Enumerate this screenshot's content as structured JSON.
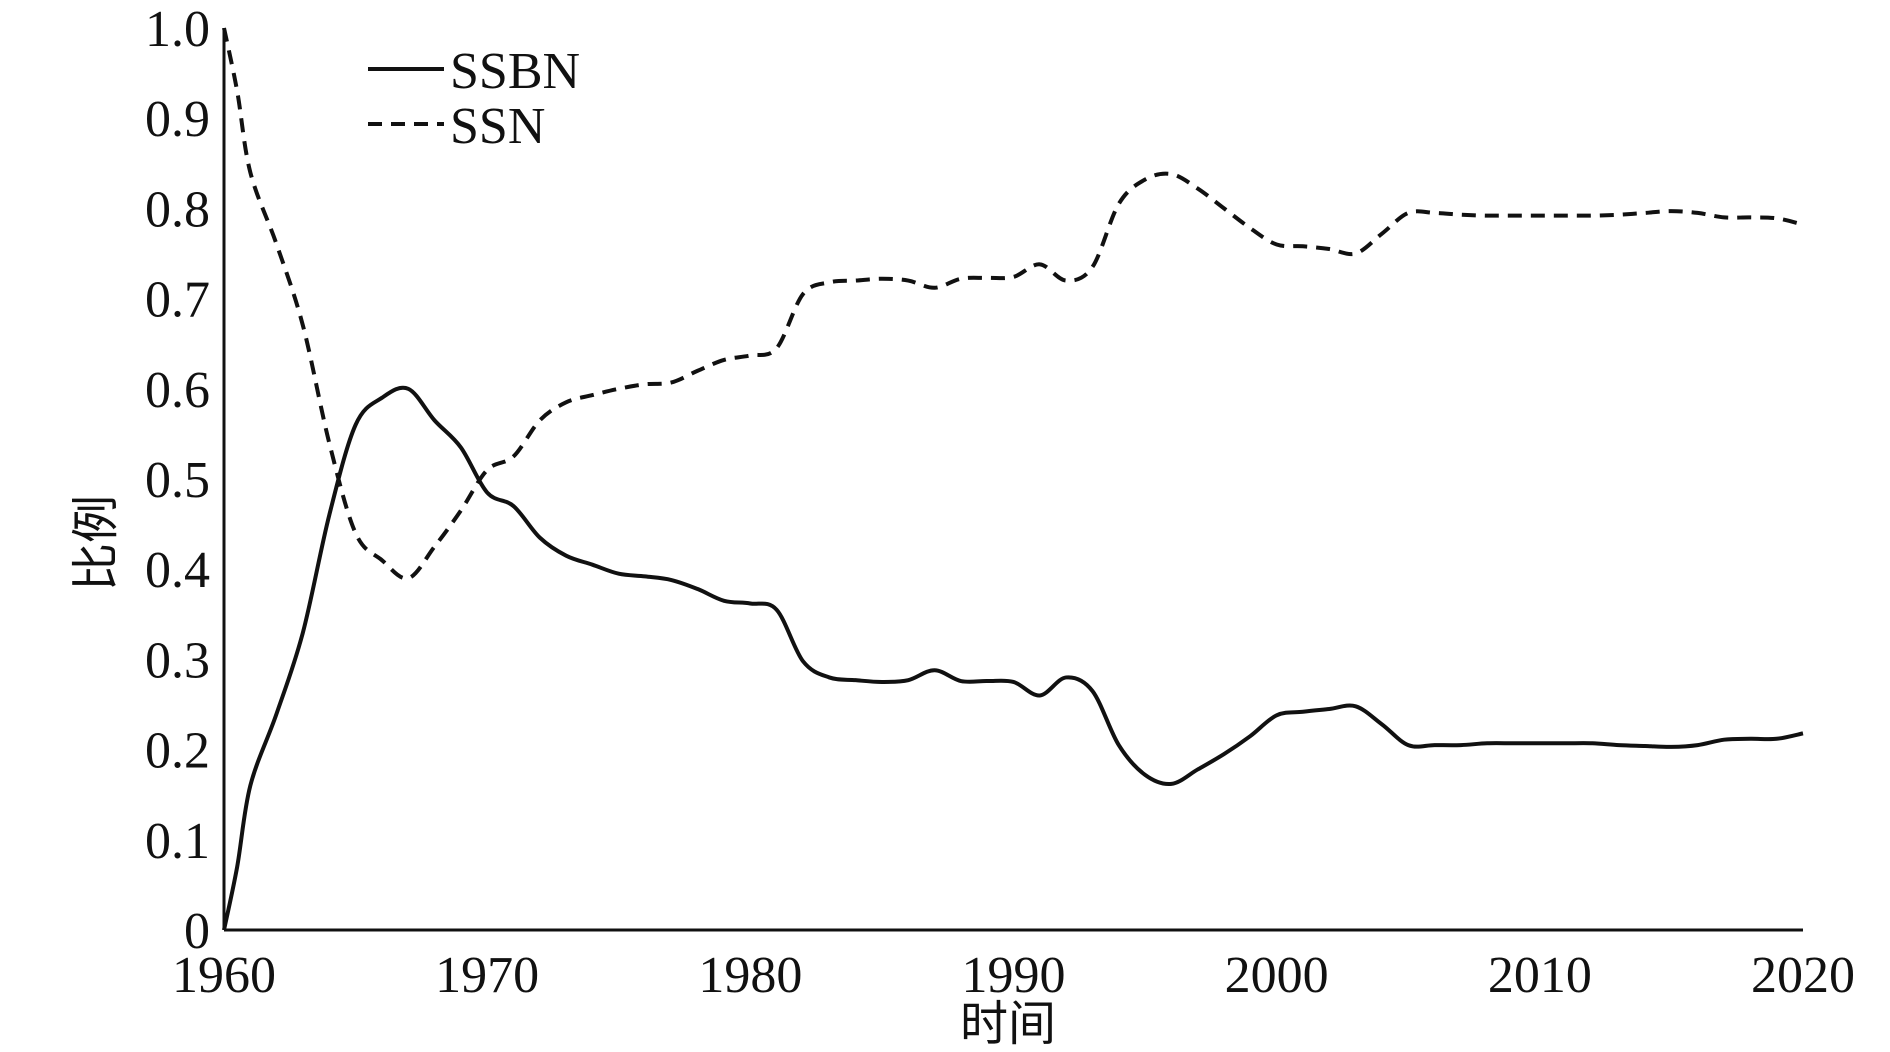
{
  "chart_data": {
    "type": "line",
    "title": "",
    "xlabel": "时间",
    "ylabel": "比例",
    "xlim": [
      1960,
      2020
    ],
    "ylim": [
      0,
      1.0
    ],
    "x_ticks": [
      "1960",
      "1970",
      "1980",
      "1990",
      "2000",
      "2010",
      "2020"
    ],
    "y_ticks": [
      "0",
      "0.1",
      "0.2",
      "0.3",
      "0.4",
      "0.5",
      "0.6",
      "0.7",
      "0.8",
      "0.9",
      "1.0"
    ],
    "grid": false,
    "legend_position": "top-left",
    "series": [
      {
        "name": "SSBN",
        "style": "solid",
        "color": "#111111",
        "x": [
          1960,
          1960.5,
          1961,
          1962,
          1963,
          1964,
          1965,
          1966,
          1967,
          1968,
          1969,
          1970,
          1971,
          1972,
          1973,
          1974,
          1975,
          1976,
          1977,
          1978,
          1979,
          1980,
          1981,
          1982,
          1983,
          1984,
          1985,
          1986,
          1987,
          1988,
          1989,
          1990,
          1991,
          1992,
          1993,
          1994,
          1995,
          1996,
          1997,
          1998,
          1999,
          2000,
          2001,
          2002,
          2003,
          2004,
          2005,
          2006,
          2007,
          2008,
          2009,
          2010,
          2011,
          2012,
          2013,
          2014,
          2015,
          2016,
          2017,
          2018,
          2019,
          2020
        ],
        "y": [
          0.0,
          0.07,
          0.16,
          0.24,
          0.33,
          0.46,
          0.56,
          0.59,
          0.6,
          0.565,
          0.535,
          0.485,
          0.47,
          0.435,
          0.415,
          0.405,
          0.395,
          0.392,
          0.388,
          0.378,
          0.365,
          0.362,
          0.355,
          0.298,
          0.28,
          0.277,
          0.275,
          0.277,
          0.288,
          0.276,
          0.276,
          0.275,
          0.26,
          0.28,
          0.265,
          0.205,
          0.172,
          0.162,
          0.178,
          0.195,
          0.215,
          0.238,
          0.242,
          0.245,
          0.248,
          0.228,
          0.205,
          0.205,
          0.205,
          0.207,
          0.207,
          0.207,
          0.207,
          0.207,
          0.205,
          0.204,
          0.203,
          0.205,
          0.211,
          0.212,
          0.212,
          0.218
        ]
      },
      {
        "name": "SSN",
        "style": "dashed",
        "color": "#111111",
        "x": [
          1960,
          1960.5,
          1961,
          1962,
          1963,
          1964,
          1965,
          1966,
          1967,
          1968,
          1969,
          1970,
          1971,
          1972,
          1973,
          1974,
          1975,
          1976,
          1977,
          1978,
          1979,
          1980,
          1981,
          1982,
          1983,
          1984,
          1985,
          1986,
          1987,
          1988,
          1989,
          1990,
          1991,
          1992,
          1993,
          1994,
          1995,
          1996,
          1997,
          1998,
          1999,
          2000,
          2001,
          2002,
          2003,
          2004,
          2005,
          2006,
          2007,
          2008,
          2009,
          2010,
          2011,
          2012,
          2013,
          2014,
          2015,
          2016,
          2017,
          2018,
          2019,
          2020
        ],
        "y": [
          1.0,
          0.93,
          0.84,
          0.76,
          0.67,
          0.54,
          0.44,
          0.41,
          0.39,
          0.425,
          0.465,
          0.51,
          0.525,
          0.565,
          0.585,
          0.593,
          0.6,
          0.605,
          0.607,
          0.62,
          0.632,
          0.637,
          0.645,
          0.705,
          0.718,
          0.72,
          0.722,
          0.72,
          0.712,
          0.722,
          0.723,
          0.724,
          0.738,
          0.72,
          0.735,
          0.805,
          0.832,
          0.838,
          0.822,
          0.8,
          0.778,
          0.76,
          0.758,
          0.755,
          0.75,
          0.772,
          0.795,
          0.795,
          0.793,
          0.792,
          0.792,
          0.792,
          0.792,
          0.792,
          0.793,
          0.795,
          0.797,
          0.795,
          0.79,
          0.79,
          0.789,
          0.782
        ]
      }
    ]
  }
}
